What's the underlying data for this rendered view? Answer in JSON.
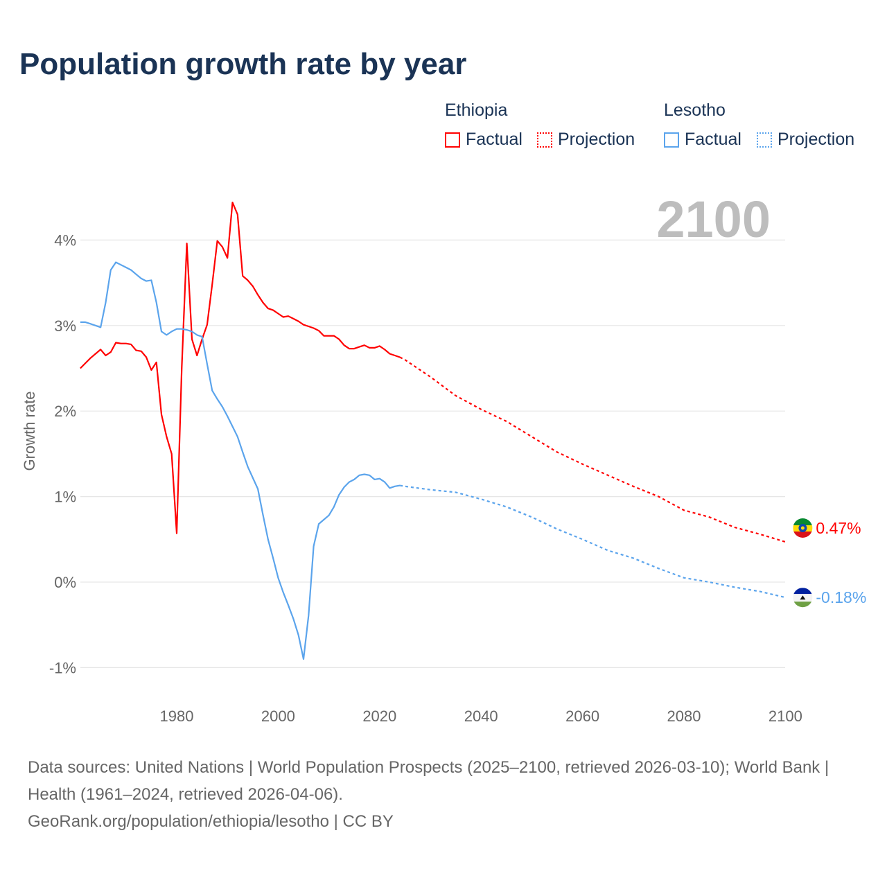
{
  "chart_data": {
    "type": "line",
    "title": "Population growth rate by year",
    "ylabel": "Growth rate",
    "xlabel": "",
    "xlim": [
      1961,
      2100
    ],
    "ylim": [
      -1.3,
      4.6
    ],
    "x_ticks": [
      1980,
      2000,
      2020,
      2040,
      2060,
      2080,
      2100
    ],
    "x_tick_labels": [
      "1980",
      "2000",
      "2020",
      "2040",
      "2060",
      "2080",
      "2100"
    ],
    "y_ticks": [
      -1,
      0,
      1,
      2,
      3,
      4
    ],
    "y_tick_labels": [
      "-1%",
      "0%",
      "1%",
      "2%",
      "3%",
      "4%"
    ],
    "grid": true,
    "year_label": "2100",
    "legend": {
      "placement": "top-right",
      "groups": [
        {
          "name": "Ethiopia",
          "factual": "Factual",
          "projection": "Projection"
        },
        {
          "name": "Lesotho",
          "factual": "Factual",
          "projection": "Projection"
        }
      ]
    },
    "series": [
      {
        "name": "Ethiopia",
        "color": "#ff0000",
        "end_label": "0.47%",
        "factual": {
          "x": [
            1961,
            1962,
            1963,
            1964,
            1965,
            1966,
            1967,
            1968,
            1969,
            1970,
            1971,
            1972,
            1973,
            1974,
            1975,
            1976,
            1977,
            1978,
            1979,
            1980,
            1981,
            1982,
            1983,
            1984,
            1985,
            1986,
            1987,
            1988,
            1989,
            1990,
            1991,
            1992,
            1993,
            1994,
            1995,
            1996,
            1997,
            1998,
            1999,
            2000,
            2001,
            2002,
            2003,
            2004,
            2005,
            2006,
            2007,
            2008,
            2009,
            2010,
            2011,
            2012,
            2013,
            2014,
            2015,
            2016,
            2017,
            2018,
            2019,
            2020,
            2021,
            2022,
            2023,
            2024
          ],
          "y": [
            2.5,
            2.56,
            2.62,
            2.67,
            2.72,
            2.65,
            2.69,
            2.8,
            2.79,
            2.79,
            2.78,
            2.71,
            2.7,
            2.63,
            2.48,
            2.57,
            1.96,
            1.7,
            1.5,
            0.57,
            2.51,
            3.96,
            2.84,
            2.65,
            2.84,
            3.01,
            3.48,
            3.99,
            3.92,
            3.79,
            4.44,
            4.3,
            3.58,
            3.53,
            3.46,
            3.36,
            3.27,
            3.2,
            3.18,
            3.14,
            3.1,
            3.11,
            3.08,
            3.05,
            3.01,
            2.99,
            2.97,
            2.94,
            2.88,
            2.88,
            2.88,
            2.84,
            2.77,
            2.73,
            2.73,
            2.75,
            2.77,
            2.74,
            2.74,
            2.76,
            2.72,
            2.67,
            2.65,
            2.63
          ]
        },
        "projection": {
          "x": [
            2024,
            2025,
            2030,
            2035,
            2040,
            2045,
            2050,
            2055,
            2060,
            2065,
            2070,
            2075,
            2080,
            2085,
            2090,
            2095,
            2100
          ],
          "y": [
            2.63,
            2.6,
            2.4,
            2.18,
            2.02,
            1.88,
            1.7,
            1.52,
            1.38,
            1.25,
            1.12,
            1.0,
            0.84,
            0.76,
            0.64,
            0.56,
            0.47
          ]
        }
      },
      {
        "name": "Lesotho",
        "color": "#5ba4ec",
        "end_label": "-0.18%",
        "factual": {
          "x": [
            1961,
            1962,
            1963,
            1964,
            1965,
            1966,
            1967,
            1968,
            1969,
            1970,
            1971,
            1972,
            1973,
            1974,
            1975,
            1976,
            1977,
            1978,
            1979,
            1980,
            1981,
            1982,
            1983,
            1984,
            1985,
            1986,
            1987,
            1988,
            1989,
            1990,
            1991,
            1992,
            1993,
            1994,
            1995,
            1996,
            1997,
            1998,
            1999,
            2000,
            2001,
            2002,
            2003,
            2004,
            2005,
            2006,
            2007,
            2008,
            2009,
            2010,
            2011,
            2012,
            2013,
            2014,
            2015,
            2016,
            2017,
            2018,
            2019,
            2020,
            2021,
            2022,
            2023,
            2024
          ],
          "y": [
            3.04,
            3.04,
            3.02,
            3.0,
            2.98,
            3.27,
            3.65,
            3.74,
            3.71,
            3.68,
            3.65,
            3.6,
            3.55,
            3.52,
            3.53,
            3.27,
            2.93,
            2.89,
            2.93,
            2.96,
            2.96,
            2.95,
            2.93,
            2.89,
            2.87,
            2.55,
            2.24,
            2.14,
            2.05,
            1.94,
            1.82,
            1.7,
            1.52,
            1.35,
            1.22,
            1.09,
            0.79,
            0.5,
            0.28,
            0.05,
            -0.12,
            -0.27,
            -0.43,
            -0.62,
            -0.9,
            -0.39,
            0.42,
            0.68,
            0.73,
            0.78,
            0.88,
            1.02,
            1.11,
            1.17,
            1.2,
            1.25,
            1.26,
            1.25,
            1.2,
            1.21,
            1.17,
            1.1,
            1.12,
            1.13
          ]
        },
        "projection": {
          "x": [
            2024,
            2025,
            2030,
            2035,
            2040,
            2045,
            2050,
            2055,
            2060,
            2065,
            2070,
            2075,
            2080,
            2085,
            2090,
            2095,
            2100
          ],
          "y": [
            1.13,
            1.12,
            1.08,
            1.05,
            0.97,
            0.88,
            0.76,
            0.62,
            0.5,
            0.37,
            0.28,
            0.16,
            0.05,
            0.0,
            -0.06,
            -0.11,
            -0.18
          ]
        }
      }
    ]
  },
  "footer": {
    "sources": "Data sources: United Nations | World Population Prospects (2025–2100, retrieved 2026-03-10); World Bank | Health (1961–2024, retrieved 2026-04-06).",
    "credit": "GeoRank.org/population/ethiopia/lesotho | CC BY"
  }
}
